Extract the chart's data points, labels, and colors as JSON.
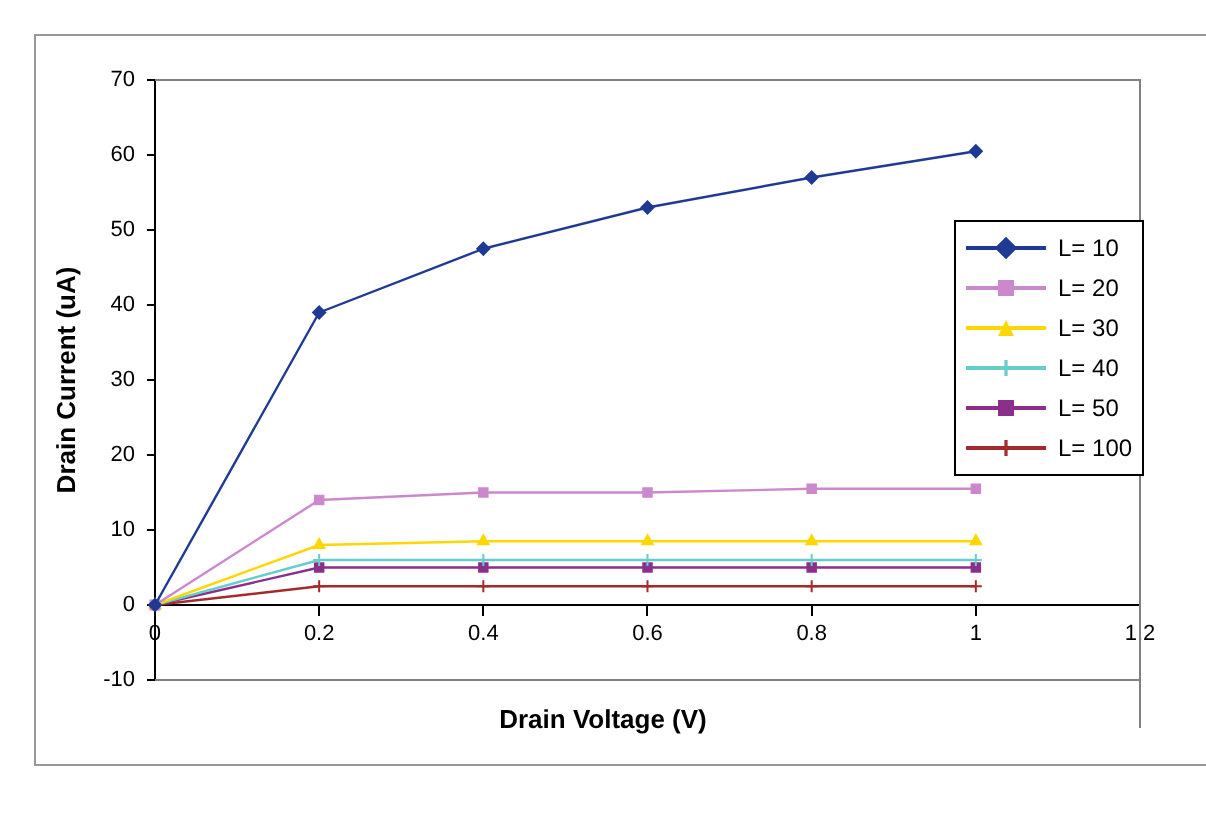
{
  "chart_data": {
    "type": "line",
    "xlabel": "Drain Voltage (V)",
    "ylabel": "Drain Current (uA)",
    "x": [
      0,
      0.2,
      0.4,
      0.6,
      0.8,
      1
    ],
    "series": [
      {
        "name": "L= 10",
        "color": "#1f3a93",
        "marker": "diamond",
        "values": [
          0,
          39,
          47.5,
          53,
          57,
          60.5
        ]
      },
      {
        "name": "L= 20",
        "color": "#cc88cc",
        "marker": "square",
        "values": [
          0,
          14,
          15,
          15,
          15.5,
          15.5
        ]
      },
      {
        "name": "L= 30",
        "color": "#ffd700",
        "marker": "triangle",
        "values": [
          0,
          8,
          8.5,
          8.5,
          8.5,
          8.5
        ]
      },
      {
        "name": "L= 40",
        "color": "#66cccc",
        "marker": "cross",
        "values": [
          0,
          6,
          6,
          6,
          6,
          6
        ]
      },
      {
        "name": "L= 50",
        "color": "#8b2f8b",
        "marker": "square",
        "values": [
          0,
          5,
          5,
          5,
          5,
          5
        ]
      },
      {
        "name": "L= 100",
        "color": "#a52a2a",
        "marker": "cross",
        "values": [
          0,
          2.5,
          2.5,
          2.5,
          2.5,
          2.5
        ]
      }
    ],
    "xlim": [
      0,
      1.2
    ],
    "xticks": [
      0,
      0.2,
      0.4,
      0.6,
      0.8,
      1,
      1.2
    ],
    "ylim": [
      -10,
      70
    ],
    "yticks": [
      -10,
      0,
      10,
      20,
      30,
      40,
      50,
      60,
      70
    ],
    "grid": false,
    "legend": "right",
    "line_style": "solid"
  }
}
